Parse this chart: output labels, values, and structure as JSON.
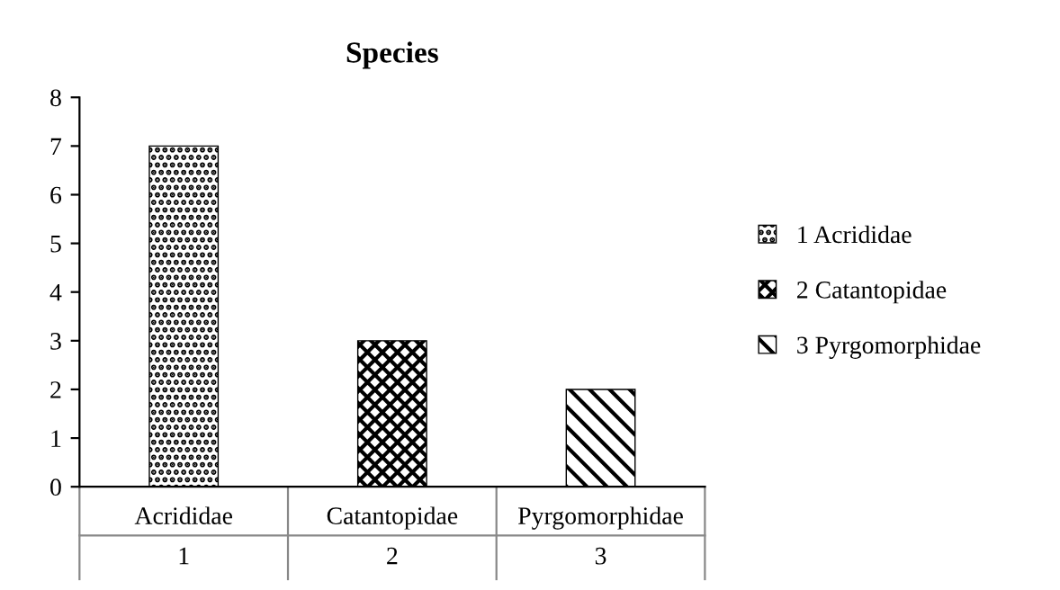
{
  "chart_data": {
    "type": "bar",
    "title": "Species",
    "categories": [
      "Acrididae\n1",
      "Catantopidae\n2",
      "Pyrgomorphidae\n3"
    ],
    "series": [
      {
        "name": "1 Acrididae",
        "color": "#000000",
        "values": [
          7,
          null,
          null
        ]
      },
      {
        "name": "2 Catantopidae",
        "color": "#000000",
        "values": [
          null,
          3,
          null
        ]
      },
      {
        "name": "3 Pyrgomorphidae",
        "color": "#000000",
        "values": [
          null,
          null,
          2
        ]
      }
    ],
    "ylim": [
      0,
      8
    ],
    "yticks": [
      0,
      1,
      2,
      3,
      4,
      5,
      6,
      7,
      8
    ],
    "grid": false,
    "legend": "right"
  }
}
